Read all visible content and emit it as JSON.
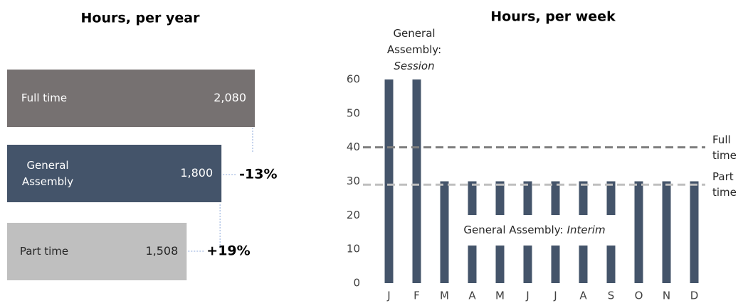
{
  "chart_data": [
    {
      "type": "hbar",
      "title": "Hours, per year",
      "categories": [
        "Full time",
        "General Assembly",
        "Part time"
      ],
      "values": [
        2080,
        1800,
        1508
      ],
      "value_labels": [
        "2,080",
        "1,800",
        "1,508"
      ],
      "colors": [
        "#767171",
        "#44546a",
        "#bfbfbf"
      ],
      "annotations": [
        "-13%",
        "+19%"
      ]
    },
    {
      "type": "bar",
      "title": "Hours, per week",
      "categories": [
        "J",
        "F",
        "M",
        "A",
        "M",
        "J",
        "J",
        "A",
        "S",
        "O",
        "N",
        "D"
      ],
      "values": [
        60,
        60,
        30,
        30,
        30,
        30,
        30,
        30,
        30,
        30,
        30,
        30
      ],
      "color": "#44546a",
      "ylim": [
        0,
        60
      ],
      "yticks": [
        0,
        10,
        20,
        30,
        40,
        50,
        60
      ],
      "reference_lines": [
        {
          "value": 40,
          "label": "Full time",
          "color": "#7f7f7f"
        },
        {
          "value": 29,
          "label": "Part time",
          "color": "#bfbfbf"
        }
      ],
      "annotations": [
        {
          "text": "General Assembly:",
          "emphasis": "Session"
        },
        {
          "text": "General Assembly:",
          "emphasis": "Interim"
        }
      ]
    }
  ]
}
